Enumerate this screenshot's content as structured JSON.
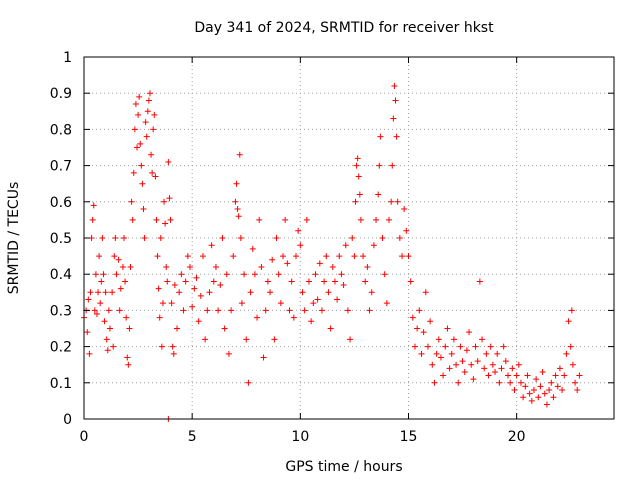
{
  "chart_data": {
    "type": "scatter",
    "title": "Day 341 of 2024, SRMTID for receiver hkst",
    "xlabel": "GPS time / hours",
    "ylabel": "SRMTID / TECUs",
    "xlim": [
      0,
      24.5
    ],
    "ylim": [
      0,
      1
    ],
    "xticks": [
      0,
      5,
      10,
      15,
      20
    ],
    "xtick_labels": [
      "0",
      "5",
      "10",
      "15",
      "20"
    ],
    "yticks": [
      0,
      0.1,
      0.2,
      0.3,
      0.4,
      0.5,
      0.6,
      0.7,
      0.8,
      0.9,
      1
    ],
    "ytick_labels": [
      "0",
      "0.1",
      "0.2",
      "0.3",
      "0.4",
      "0.5",
      "0.6",
      "0.7",
      "0.8",
      "0.9",
      "1"
    ],
    "grid": true,
    "marker": "+",
    "color": "#ff0000",
    "series": [
      {
        "name": "SRMTID",
        "points": [
          [
            0.0,
            0.28
          ],
          [
            0.1,
            0.3
          ],
          [
            0.15,
            0.24
          ],
          [
            0.2,
            0.33
          ],
          [
            0.25,
            0.18
          ],
          [
            0.3,
            0.35
          ],
          [
            0.35,
            0.5
          ],
          [
            0.4,
            0.55
          ],
          [
            0.45,
            0.59
          ],
          [
            0.5,
            0.3
          ],
          [
            0.55,
            0.4
          ],
          [
            0.6,
            0.29
          ],
          [
            0.65,
            0.35
          ],
          [
            0.7,
            0.45
          ],
          [
            0.75,
            0.32
          ],
          [
            0.8,
            0.38
          ],
          [
            0.85,
            0.5
          ],
          [
            0.9,
            0.4
          ],
          [
            0.95,
            0.27
          ],
          [
            1.0,
            0.35
          ],
          [
            1.05,
            0.22
          ],
          [
            1.1,
            0.19
          ],
          [
            1.15,
            0.3
          ],
          [
            1.2,
            0.25
          ],
          [
            1.3,
            0.35
          ],
          [
            1.35,
            0.2
          ],
          [
            1.4,
            0.45
          ],
          [
            1.45,
            0.5
          ],
          [
            1.5,
            0.4
          ],
          [
            1.6,
            0.44
          ],
          [
            1.65,
            0.3
          ],
          [
            1.7,
            0.36
          ],
          [
            1.8,
            0.42
          ],
          [
            1.85,
            0.5
          ],
          [
            1.9,
            0.38
          ],
          [
            1.95,
            0.28
          ],
          [
            2.0,
            0.17
          ],
          [
            2.05,
            0.15
          ],
          [
            2.1,
            0.25
          ],
          [
            2.15,
            0.42
          ],
          [
            2.2,
            0.6
          ],
          [
            2.25,
            0.55
          ],
          [
            2.3,
            0.68
          ],
          [
            2.35,
            0.8
          ],
          [
            2.4,
            0.87
          ],
          [
            2.45,
            0.75
          ],
          [
            2.5,
            0.84
          ],
          [
            2.55,
            0.89
          ],
          [
            2.6,
            0.76
          ],
          [
            2.65,
            0.7
          ],
          [
            2.7,
            0.65
          ],
          [
            2.75,
            0.58
          ],
          [
            2.8,
            0.5
          ],
          [
            2.85,
            0.82
          ],
          [
            2.9,
            0.78
          ],
          [
            2.95,
            0.85
          ],
          [
            3.0,
            0.88
          ],
          [
            3.05,
            0.9
          ],
          [
            3.1,
            0.73
          ],
          [
            3.15,
            0.68
          ],
          [
            3.2,
            0.8
          ],
          [
            3.25,
            0.84
          ],
          [
            3.3,
            0.67
          ],
          [
            3.35,
            0.55
          ],
          [
            3.4,
            0.45
          ],
          [
            3.45,
            0.36
          ],
          [
            3.5,
            0.28
          ],
          [
            3.55,
            0.5
          ],
          [
            3.6,
            0.2
          ],
          [
            3.65,
            0.32
          ],
          [
            3.7,
            0.6
          ],
          [
            3.75,
            0.54
          ],
          [
            3.8,
            0.42
          ],
          [
            3.85,
            0.38
          ],
          [
            3.9,
            0.71
          ],
          [
            3.95,
            0.61
          ],
          [
            4.0,
            0.55
          ],
          [
            4.05,
            0.32
          ],
          [
            4.1,
            0.2
          ],
          [
            4.15,
            0.18
          ],
          [
            4.2,
            0.37
          ],
          [
            4.3,
            0.25
          ],
          [
            4.4,
            0.35
          ],
          [
            4.5,
            0.4
          ],
          [
            4.6,
            0.3
          ],
          [
            4.7,
            0.38
          ],
          [
            4.8,
            0.45
          ],
          [
            4.9,
            0.42
          ],
          [
            5.0,
            0.31
          ],
          [
            5.1,
            0.36
          ],
          [
            5.2,
            0.39
          ],
          [
            5.3,
            0.27
          ],
          [
            5.4,
            0.34
          ],
          [
            5.5,
            0.45
          ],
          [
            5.6,
            0.22
          ],
          [
            5.7,
            0.3
          ],
          [
            5.8,
            0.35
          ],
          [
            5.9,
            0.48
          ],
          [
            6.0,
            0.38
          ],
          [
            6.1,
            0.42
          ],
          [
            6.2,
            0.3
          ],
          [
            6.3,
            0.37
          ],
          [
            6.4,
            0.5
          ],
          [
            6.5,
            0.25
          ],
          [
            6.6,
            0.4
          ],
          [
            6.7,
            0.18
          ],
          [
            6.8,
            0.3
          ],
          [
            6.9,
            0.45
          ],
          [
            7.0,
            0.6
          ],
          [
            7.05,
            0.65
          ],
          [
            7.1,
            0.58
          ],
          [
            7.15,
            0.56
          ],
          [
            7.2,
            0.73
          ],
          [
            7.25,
            0.5
          ],
          [
            7.3,
            0.32
          ],
          [
            7.4,
            0.4
          ],
          [
            7.5,
            0.22
          ],
          [
            7.6,
            0.1
          ],
          [
            7.7,
            0.35
          ],
          [
            7.8,
            0.47
          ],
          [
            7.9,
            0.4
          ],
          [
            8.0,
            0.28
          ],
          [
            8.1,
            0.55
          ],
          [
            8.2,
            0.42
          ],
          [
            8.3,
            0.17
          ],
          [
            8.4,
            0.3
          ],
          [
            8.5,
            0.38
          ],
          [
            8.6,
            0.35
          ],
          [
            8.7,
            0.44
          ],
          [
            8.8,
            0.22
          ],
          [
            8.9,
            0.5
          ],
          [
            9.0,
            0.4
          ],
          [
            9.1,
            0.32
          ],
          [
            9.2,
            0.45
          ],
          [
            9.3,
            0.55
          ],
          [
            9.4,
            0.43
          ],
          [
            9.5,
            0.3
          ],
          [
            9.6,
            0.38
          ],
          [
            9.7,
            0.28
          ],
          [
            9.8,
            0.45
          ],
          [
            9.9,
            0.52
          ],
          [
            10.0,
            0.48
          ],
          [
            10.1,
            0.35
          ],
          [
            10.2,
            0.3
          ],
          [
            10.3,
            0.55
          ],
          [
            10.4,
            0.38
          ],
          [
            10.5,
            0.27
          ],
          [
            10.6,
            0.32
          ],
          [
            10.7,
            0.4
          ],
          [
            10.8,
            0.33
          ],
          [
            10.9,
            0.43
          ],
          [
            11.0,
            0.3
          ],
          [
            11.1,
            0.38
          ],
          [
            11.2,
            0.45
          ],
          [
            11.3,
            0.35
          ],
          [
            11.4,
            0.25
          ],
          [
            11.5,
            0.42
          ],
          [
            11.6,
            0.38
          ],
          [
            11.7,
            0.33
          ],
          [
            11.8,
            0.45
          ],
          [
            11.9,
            0.4
          ],
          [
            12.0,
            0.37
          ],
          [
            12.1,
            0.48
          ],
          [
            12.2,
            0.3
          ],
          [
            12.3,
            0.22
          ],
          [
            12.4,
            0.5
          ],
          [
            12.5,
            0.45
          ],
          [
            12.55,
            0.6
          ],
          [
            12.6,
            0.7
          ],
          [
            12.65,
            0.72
          ],
          [
            12.7,
            0.67
          ],
          [
            12.75,
            0.62
          ],
          [
            12.8,
            0.55
          ],
          [
            12.9,
            0.45
          ],
          [
            13.0,
            0.38
          ],
          [
            13.1,
            0.42
          ],
          [
            13.2,
            0.3
          ],
          [
            13.3,
            0.35
          ],
          [
            13.4,
            0.48
          ],
          [
            13.5,
            0.55
          ],
          [
            13.6,
            0.62
          ],
          [
            13.65,
            0.7
          ],
          [
            13.7,
            0.78
          ],
          [
            13.8,
            0.5
          ],
          [
            13.9,
            0.4
          ],
          [
            14.0,
            0.32
          ],
          [
            14.1,
            0.55
          ],
          [
            14.2,
            0.6
          ],
          [
            14.25,
            0.7
          ],
          [
            14.3,
            0.83
          ],
          [
            14.35,
            0.92
          ],
          [
            14.4,
            0.88
          ],
          [
            14.45,
            0.78
          ],
          [
            14.5,
            0.6
          ],
          [
            14.6,
            0.5
          ],
          [
            14.7,
            0.45
          ],
          [
            14.8,
            0.58
          ],
          [
            14.9,
            0.52
          ],
          [
            15.0,
            0.45
          ],
          [
            15.1,
            0.38
          ],
          [
            15.2,
            0.28
          ],
          [
            15.3,
            0.2
          ],
          [
            15.4,
            0.25
          ],
          [
            15.5,
            0.3
          ],
          [
            15.6,
            0.18
          ],
          [
            15.7,
            0.24
          ],
          [
            15.8,
            0.35
          ],
          [
            15.9,
            0.2
          ],
          [
            16.0,
            0.27
          ],
          [
            16.1,
            0.15
          ],
          [
            16.2,
            0.1
          ],
          [
            16.3,
            0.18
          ],
          [
            16.4,
            0.22
          ],
          [
            16.5,
            0.17
          ],
          [
            16.6,
            0.12
          ],
          [
            16.7,
            0.2
          ],
          [
            16.8,
            0.25
          ],
          [
            16.9,
            0.14
          ],
          [
            17.0,
            0.18
          ],
          [
            17.1,
            0.22
          ],
          [
            17.2,
            0.15
          ],
          [
            17.3,
            0.1
          ],
          [
            17.4,
            0.2
          ],
          [
            17.5,
            0.16
          ],
          [
            17.6,
            0.13
          ],
          [
            17.7,
            0.19
          ],
          [
            17.8,
            0.24
          ],
          [
            17.9,
            0.15
          ],
          [
            18.0,
            0.11
          ],
          [
            18.1,
            0.2
          ],
          [
            18.2,
            0.16
          ],
          [
            18.3,
            0.38
          ],
          [
            18.4,
            0.22
          ],
          [
            18.5,
            0.14
          ],
          [
            18.6,
            0.18
          ],
          [
            18.7,
            0.12
          ],
          [
            18.8,
            0.2
          ],
          [
            18.9,
            0.15
          ],
          [
            19.0,
            0.13
          ],
          [
            19.1,
            0.18
          ],
          [
            19.2,
            0.1
          ],
          [
            19.3,
            0.14
          ],
          [
            19.4,
            0.2
          ],
          [
            19.5,
            0.16
          ],
          [
            19.6,
            0.12
          ],
          [
            19.7,
            0.1
          ],
          [
            19.8,
            0.14
          ],
          [
            19.9,
            0.08
          ],
          [
            20.0,
            0.12
          ],
          [
            20.1,
            0.15
          ],
          [
            20.2,
            0.1
          ],
          [
            20.3,
            0.06
          ],
          [
            20.4,
            0.09
          ],
          [
            20.5,
            0.12
          ],
          [
            20.6,
            0.07
          ],
          [
            20.7,
            0.05
          ],
          [
            20.8,
            0.08
          ],
          [
            20.9,
            0.11
          ],
          [
            21.0,
            0.06
          ],
          [
            21.1,
            0.09
          ],
          [
            21.2,
            0.13
          ],
          [
            21.3,
            0.07
          ],
          [
            21.4,
            0.04
          ],
          [
            21.5,
            0.08
          ],
          [
            21.6,
            0.1
          ],
          [
            21.7,
            0.06
          ],
          [
            21.8,
            0.12
          ],
          [
            21.9,
            0.09
          ],
          [
            22.0,
            0.14
          ],
          [
            22.1,
            0.08
          ],
          [
            22.2,
            0.12
          ],
          [
            22.3,
            0.18
          ],
          [
            22.4,
            0.27
          ],
          [
            22.5,
            0.2
          ],
          [
            22.55,
            0.3
          ],
          [
            22.6,
            0.15
          ],
          [
            22.7,
            0.1
          ],
          [
            22.8,
            0.08
          ],
          [
            22.9,
            0.12
          ],
          [
            3.9,
            0.0
          ]
        ]
      }
    ]
  }
}
